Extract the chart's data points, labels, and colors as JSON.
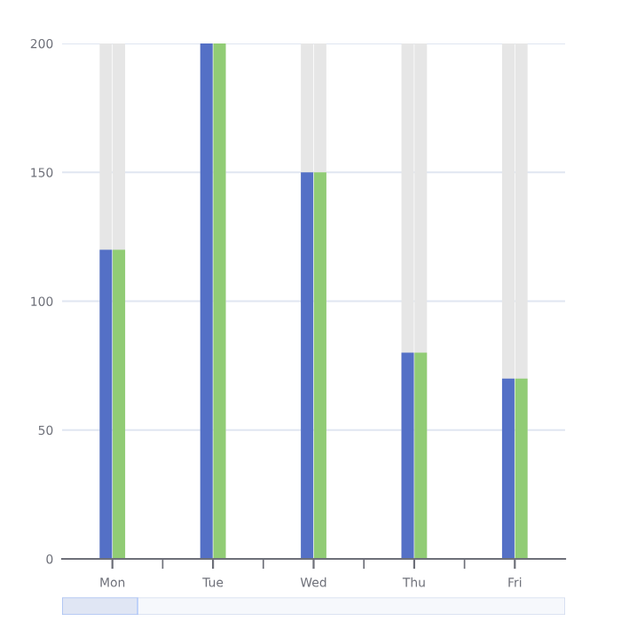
{
  "chart_data": {
    "type": "bar",
    "categories": [
      "Mon",
      "Tue",
      "Wed",
      "Thu",
      "Fri"
    ],
    "series": [
      {
        "color": "#5470c6",
        "values": [
          120,
          200,
          150,
          80,
          70
        ]
      },
      {
        "color": "#91cc75",
        "values": [
          120,
          200,
          150,
          80,
          70
        ]
      }
    ],
    "ylim": [
      0,
      200
    ],
    "yticks": [
      0,
      50,
      100,
      150,
      200
    ],
    "grid": "y"
  }
}
